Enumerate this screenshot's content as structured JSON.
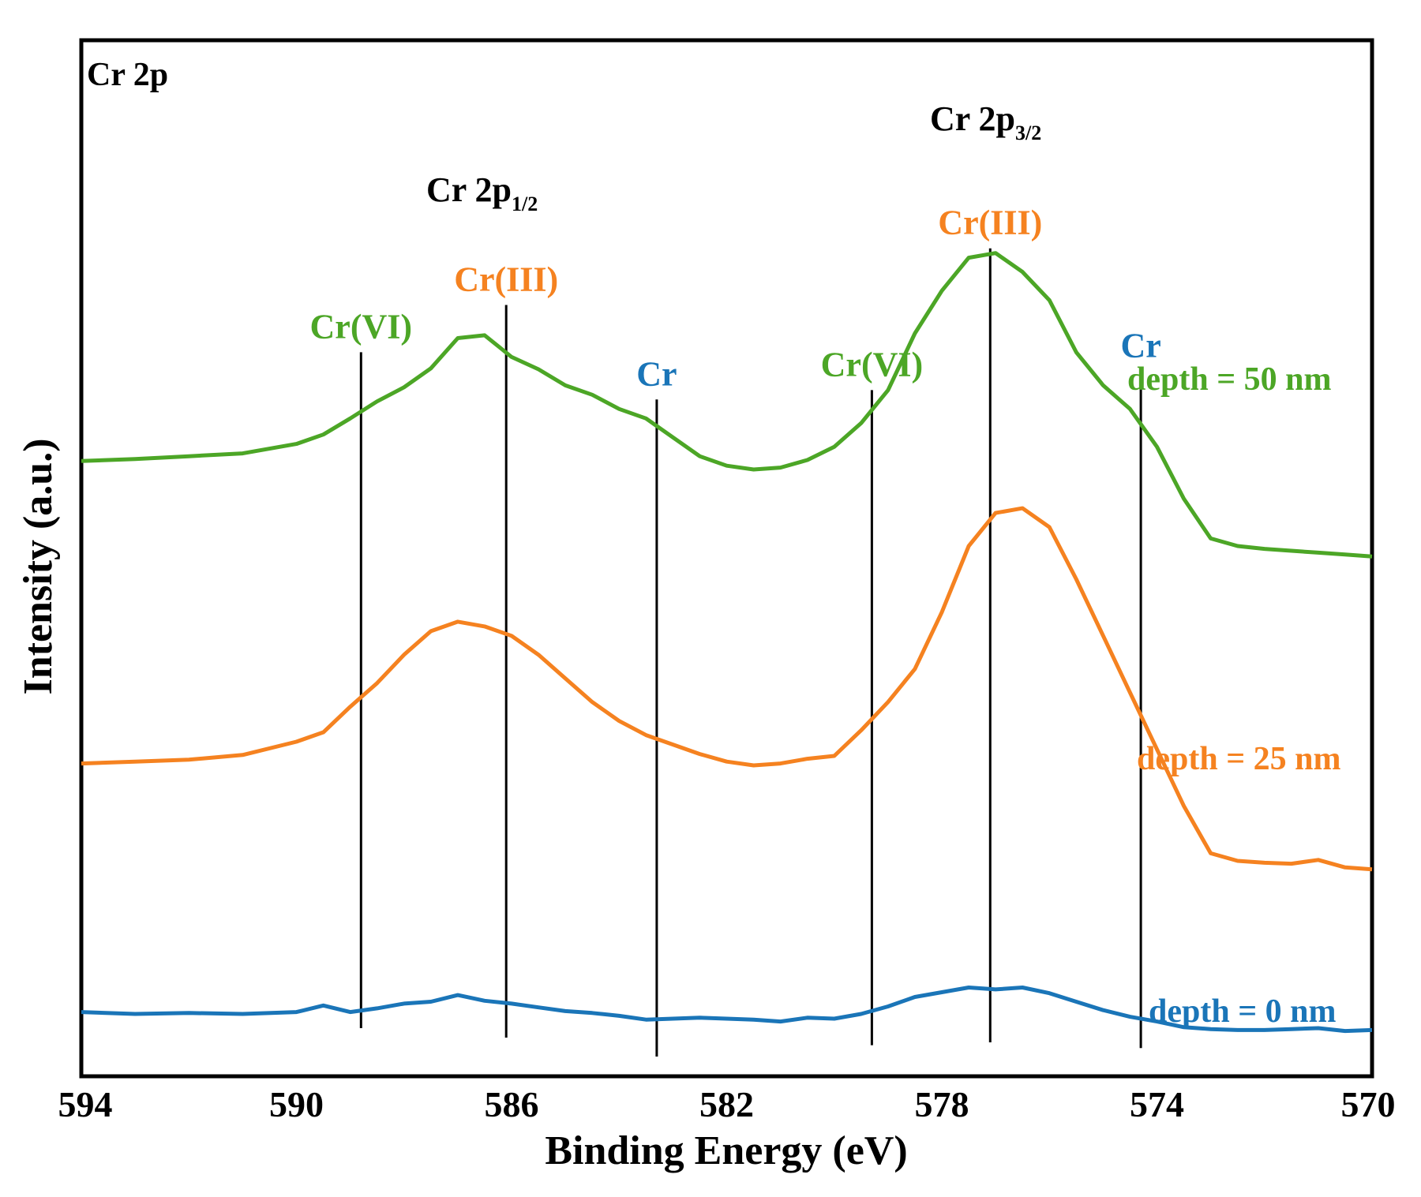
{
  "chart_data": {
    "type": "line",
    "title": "Cr 2p",
    "xlabel": "Binding Energy (eV)",
    "ylabel": "Intensity (a.u.)",
    "xlim": [
      594,
      570
    ],
    "x_reversed": true,
    "xticks": [
      594,
      590,
      586,
      582,
      578,
      574,
      570
    ],
    "xtick_labels": [
      "594",
      "590",
      "586",
      "582",
      "578",
      "574",
      "570"
    ],
    "ylim": [
      0,
      100
    ],
    "grid": false,
    "series": [
      {
        "name": "depth = 50 nm",
        "color": "#4ca626",
        "x": [
          594,
          593,
          592,
          591,
          590,
          589.5,
          589,
          588.5,
          588,
          587.5,
          587,
          586.5,
          586,
          585.5,
          585,
          584.5,
          584,
          583.5,
          583,
          582.5,
          582,
          581.5,
          581,
          580.5,
          580,
          579.5,
          579,
          578.5,
          578,
          577.5,
          577,
          576.5,
          576,
          575.5,
          575,
          574.5,
          574,
          573.5,
          573,
          572.5,
          572,
          571.5,
          571,
          570.5,
          570
        ],
        "y": [
          60.5,
          60.7,
          61.0,
          61.3,
          62.3,
          63.3,
          65.0,
          66.8,
          68.3,
          70.3,
          73.5,
          73.8,
          71.5,
          70.2,
          68.5,
          67.5,
          66.0,
          65.0,
          63.0,
          61.0,
          60.0,
          59.6,
          59.8,
          60.6,
          62.0,
          64.5,
          68.0,
          74.0,
          78.5,
          82.0,
          82.5,
          80.5,
          77.5,
          72.0,
          68.5,
          66.0,
          62.0,
          56.5,
          52.3,
          51.5,
          51.2,
          51.0,
          50.8,
          50.6,
          50.4
        ]
      },
      {
        "name": "depth = 25 nm",
        "color": "#f58220",
        "x": [
          594,
          593,
          592,
          591,
          590,
          589.5,
          589,
          588.5,
          588,
          587.5,
          587,
          586.5,
          586,
          585.5,
          585,
          584.5,
          584,
          583.5,
          583,
          582.5,
          582,
          581.5,
          581,
          580.5,
          580,
          579.5,
          579,
          578.5,
          578,
          577.5,
          577,
          576.5,
          576,
          575.5,
          575,
          574.5,
          574,
          573.5,
          573,
          572.5,
          572,
          571.5,
          571,
          570.5,
          570
        ],
        "y": [
          28.5,
          28.7,
          28.9,
          29.4,
          30.8,
          31.8,
          34.5,
          37.0,
          40.0,
          42.5,
          43.5,
          43.0,
          42.0,
          40.0,
          37.5,
          35.0,
          33.0,
          31.5,
          30.5,
          29.5,
          28.7,
          28.3,
          28.5,
          29.0,
          29.3,
          32.0,
          35.0,
          38.5,
          44.5,
          51.5,
          55.0,
          55.5,
          53.5,
          48.0,
          42.0,
          36.0,
          30.0,
          24.0,
          19.0,
          18.2,
          18.0,
          17.9,
          18.3,
          17.5,
          17.3
        ]
      },
      {
        "name": "depth = 0 nm",
        "color": "#1a75b8",
        "x": [
          594,
          593,
          592,
          591,
          590,
          589.5,
          589,
          588.5,
          588,
          587.5,
          587,
          586.5,
          586,
          585.5,
          585,
          584.5,
          584,
          583.5,
          583,
          582.5,
          582,
          581.5,
          581,
          580.5,
          580,
          579.5,
          579,
          578.5,
          578,
          577.5,
          577,
          576.5,
          576,
          575.5,
          575,
          574.5,
          574,
          573.5,
          573,
          572.5,
          572,
          571.5,
          571,
          570.5,
          570
        ],
        "y": [
          2.2,
          2.0,
          2.1,
          2.0,
          2.2,
          2.9,
          2.2,
          2.6,
          3.1,
          3.3,
          4.0,
          3.4,
          3.1,
          2.7,
          2.3,
          2.1,
          1.8,
          1.4,
          1.5,
          1.6,
          1.5,
          1.4,
          1.2,
          1.6,
          1.5,
          2.0,
          2.8,
          3.8,
          4.3,
          4.8,
          4.6,
          4.8,
          4.2,
          3.3,
          2.4,
          1.7,
          1.2,
          0.6,
          0.4,
          0.3,
          0.3,
          0.4,
          0.5,
          0.2,
          0.3
        ]
      }
    ],
    "reference_lines": [
      {
        "x": 588.8,
        "label": "Cr(VI)",
        "color": "#4ca626",
        "line_top": 72,
        "line_bottom": 0.5
      },
      {
        "x": 586.1,
        "label": "Cr(III)",
        "color": "#f58220",
        "line_top": 77,
        "line_bottom": -0.5
      },
      {
        "x": 583.3,
        "label": "Cr",
        "color": "#1a75b8",
        "line_top": 67,
        "line_bottom": -2.5
      },
      {
        "x": 579.3,
        "label": "Cr(VI)",
        "color": "#4ca626",
        "line_top": 68,
        "line_bottom": -1.3
      },
      {
        "x": 577.1,
        "label": "Cr(III)",
        "color": "#f58220",
        "line_top": 83,
        "line_bottom": -1.0
      },
      {
        "x": 574.3,
        "label": "Cr",
        "color": "#1a75b8",
        "line_top": 70,
        "line_bottom": -1.6
      }
    ],
    "annotations": [
      {
        "text": "Cr 2p",
        "kind": "panel-title"
      },
      {
        "text": "Cr 2p",
        "sub": "1/2",
        "x": 587.3,
        "y": 89
      },
      {
        "text": "Cr 2p",
        "sub": "3/2",
        "x": 577.5,
        "y": 98
      }
    ]
  }
}
